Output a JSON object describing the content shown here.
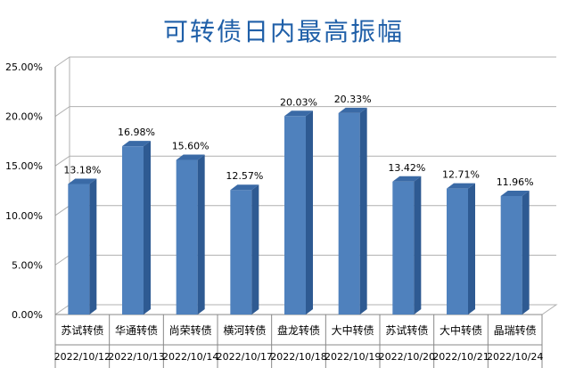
{
  "chart_data": {
    "type": "bar",
    "title": "可转债日内最高振幅",
    "categories": [
      "苏试转债",
      "华通转债",
      "尚荣转债",
      "横河转债",
      "盘龙转债",
      "大中转债",
      "苏试转债",
      "大中转债",
      "晶瑞转债"
    ],
    "dates": [
      "2022/10/12",
      "2022/10/13",
      "2022/10/14",
      "2022/10/17",
      "2022/10/18",
      "2022/10/19",
      "2022/10/20",
      "2022/10/21",
      "2022/10/24"
    ],
    "values": [
      13.18,
      16.98,
      15.6,
      12.57,
      20.03,
      20.33,
      13.42,
      12.71,
      11.96
    ],
    "value_labels": [
      "13.18%",
      "16.98%",
      "15.60%",
      "12.57%",
      "20.03%",
      "20.33%",
      "13.42%",
      "12.71%",
      "11.96%"
    ],
    "y_ticks": [
      "0.00%",
      "5.00%",
      "10.00%",
      "15.00%",
      "20.00%",
      "25.00%"
    ],
    "ylim": [
      0,
      25
    ],
    "grid": true,
    "colors": {
      "bar_front": "#4f81bd",
      "bar_side": "#2e5a92",
      "bar_top": "#3a6aa6",
      "title": "#1f5fa8",
      "grid": "#b0b0b0"
    }
  }
}
